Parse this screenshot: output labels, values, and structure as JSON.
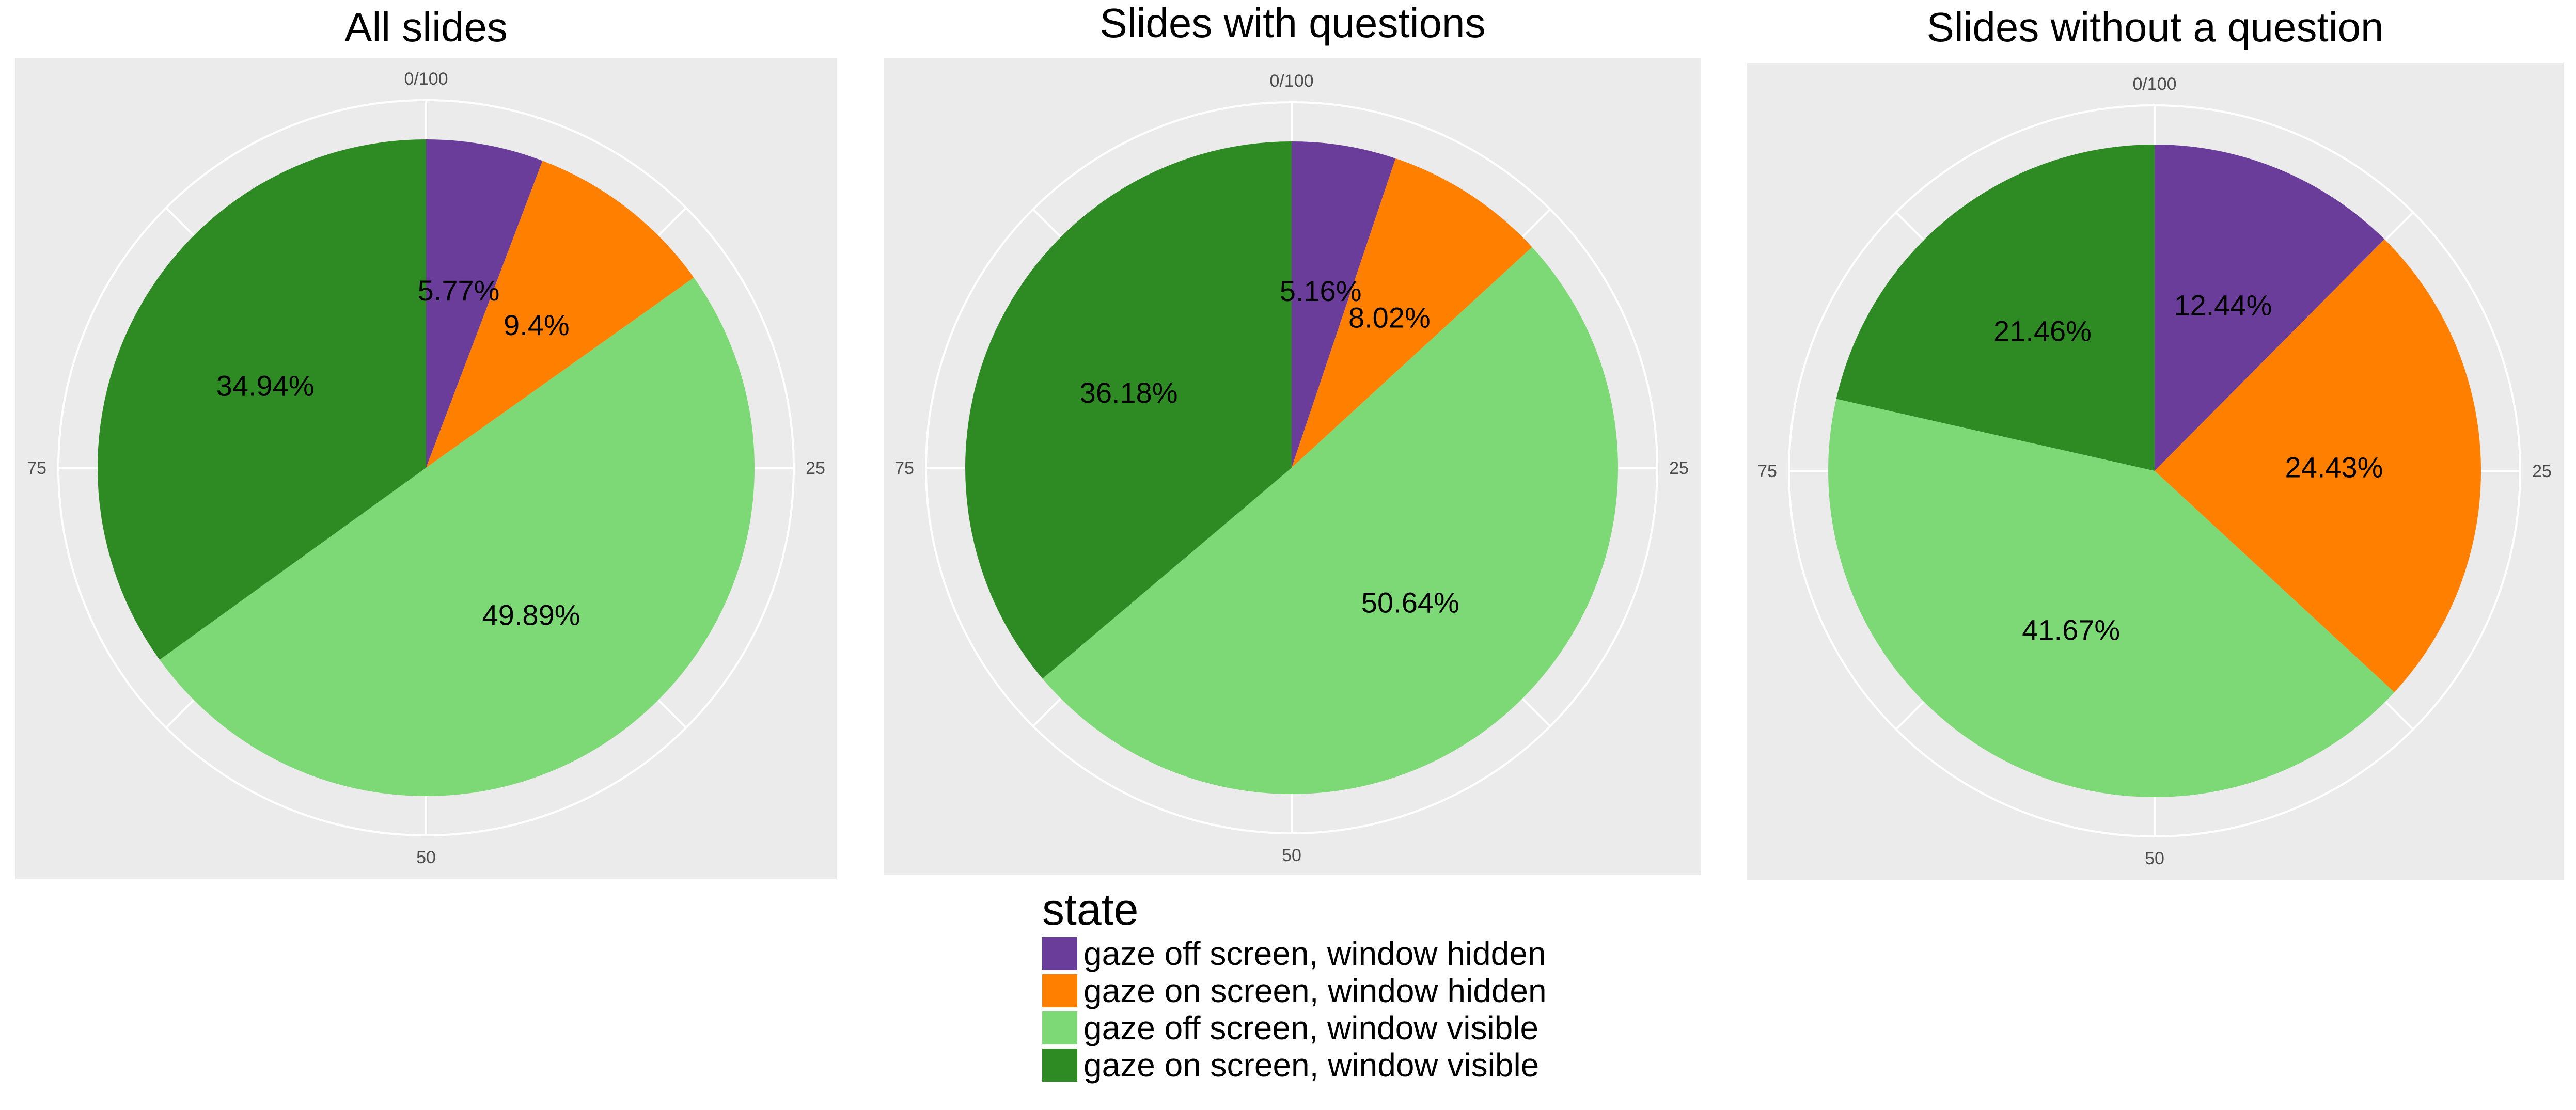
{
  "chart_data": [
    {
      "type": "pie",
      "title": "All slides",
      "categories": [
        "gaze off screen, window hidden",
        "gaze on screen, window hidden",
        "gaze off screen, window visible",
        "gaze on screen, window visible"
      ],
      "values": [
        5.77,
        9.4,
        49.89,
        34.94
      ],
      "data_labels": [
        "5.77%",
        "9.4%",
        "49.89%",
        "34.94%"
      ],
      "axis_ticks": [
        "0/100",
        "25",
        "50",
        "75"
      ]
    },
    {
      "type": "pie",
      "title": "Slides with questions",
      "categories": [
        "gaze off screen, window hidden",
        "gaze on screen, window hidden",
        "gaze off screen, window visible",
        "gaze on screen, window visible"
      ],
      "values": [
        5.16,
        8.02,
        50.64,
        36.18
      ],
      "data_labels": [
        "5.16%",
        "8.02%",
        "50.64%",
        "36.18%"
      ],
      "axis_ticks": [
        "0/100",
        "25",
        "50",
        "75"
      ]
    },
    {
      "type": "pie",
      "title": "Slides without a question",
      "categories": [
        "gaze off screen, window hidden",
        "gaze on screen, window hidden",
        "gaze off screen, window visible",
        "gaze on screen, window visible"
      ],
      "values": [
        12.44,
        24.43,
        41.67,
        21.46
      ],
      "data_labels": [
        "12.44%",
        "24.43%",
        "41.67%",
        "21.46%"
      ],
      "axis_ticks": [
        "0/100",
        "25",
        "50",
        "75"
      ]
    }
  ],
  "legend": {
    "title": "state",
    "placement": "bottom-center",
    "items": [
      {
        "label": "gaze off screen, window hidden",
        "color": "#6a3d9a"
      },
      {
        "label": "gaze on screen, window hidden",
        "color": "#ff7f00"
      },
      {
        "label": "gaze off screen, window visible",
        "color": "#7cd975"
      },
      {
        "label": "gaze on screen, window visible",
        "color": "#2e8b24"
      }
    ]
  },
  "panel_background": "#ebebeb",
  "grid_color": "#ffffff"
}
